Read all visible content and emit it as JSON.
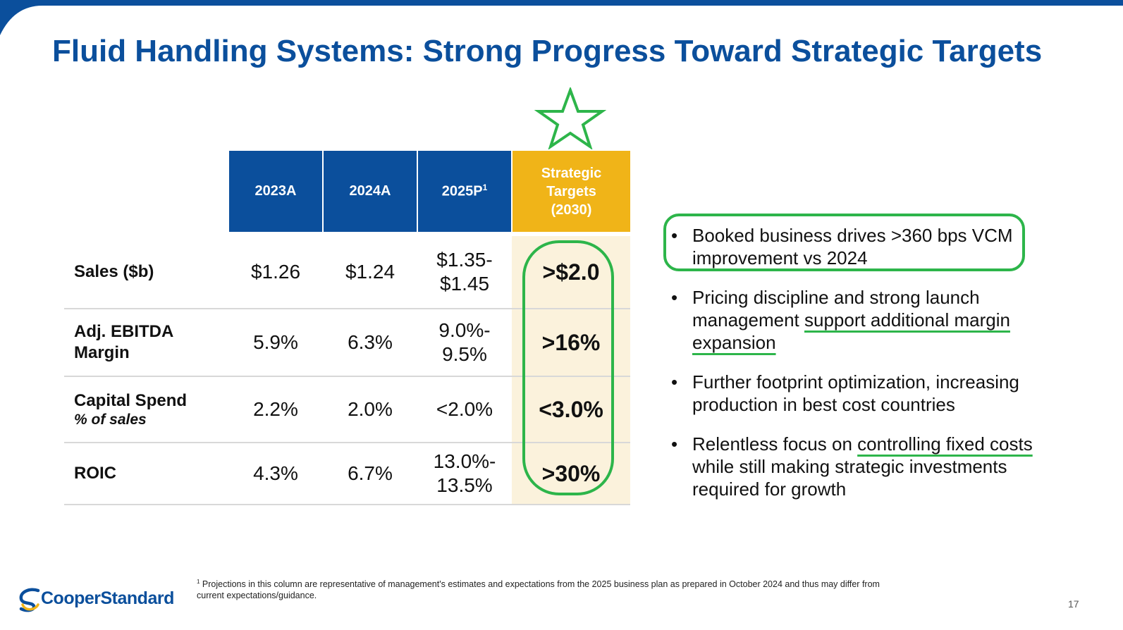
{
  "title": "Fluid Handling Systems: Strong Progress Toward Strategic Targets",
  "colors": {
    "brand_blue": "#0b4f9c",
    "gold": "#f0b418",
    "highlight_green": "#2db54a"
  },
  "table": {
    "headers": [
      "2023A",
      "2024A",
      "2025P",
      "Strategic Targets (2030)"
    ],
    "header_2025_sup": "1",
    "target_header_lines": [
      "Strategic",
      "Targets",
      "(2030)"
    ],
    "rows": [
      {
        "label": "Sales ($b)",
        "sub": "",
        "v2023": "$1.26",
        "v2024": "$1.24",
        "v2025a": "$1.35-",
        "v2025b": "$1.45",
        "target": ">$2.0"
      },
      {
        "label": "Adj. EBITDA",
        "label2": "Margin",
        "sub": "",
        "v2023": "5.9%",
        "v2024": "6.3%",
        "v2025a": "9.0%-",
        "v2025b": "9.5%",
        "target": ">16%"
      },
      {
        "label": "Capital Spend",
        "sub": "% of sales",
        "v2023": "2.2%",
        "v2024": "2.0%",
        "v2025a": "<2.0%",
        "v2025b": "",
        "target": "<3.0%"
      },
      {
        "label": "ROIC",
        "sub": "",
        "v2023": "4.3%",
        "v2024": "6.7%",
        "v2025a": "13.0%-",
        "v2025b": "13.5%",
        "target": ">30%"
      }
    ]
  },
  "bullets": [
    {
      "pre": "Booked business drives >360 bps VCM improvement vs 2024",
      "underlined": "",
      "post": ""
    },
    {
      "pre": "Pricing discipline and strong launch management ",
      "underlined": "support additional margin expansion",
      "post": ""
    },
    {
      "pre": "Further footprint optimization, increasing production in best cost countries",
      "underlined": "",
      "post": ""
    },
    {
      "pre": "Relentless focus on ",
      "underlined": "controlling fixed costs",
      "post": " while still making strategic investments required for growth"
    }
  ],
  "bullet_char": "•",
  "footnote": {
    "sup": "1",
    "text": " Projections in this column are representative of management's estimates and expectations from the 2025 business plan as prepared in October 2024 and thus may differ from current expectations/guidance."
  },
  "logo": {
    "text": "CooperStandard"
  },
  "page_number": "17"
}
